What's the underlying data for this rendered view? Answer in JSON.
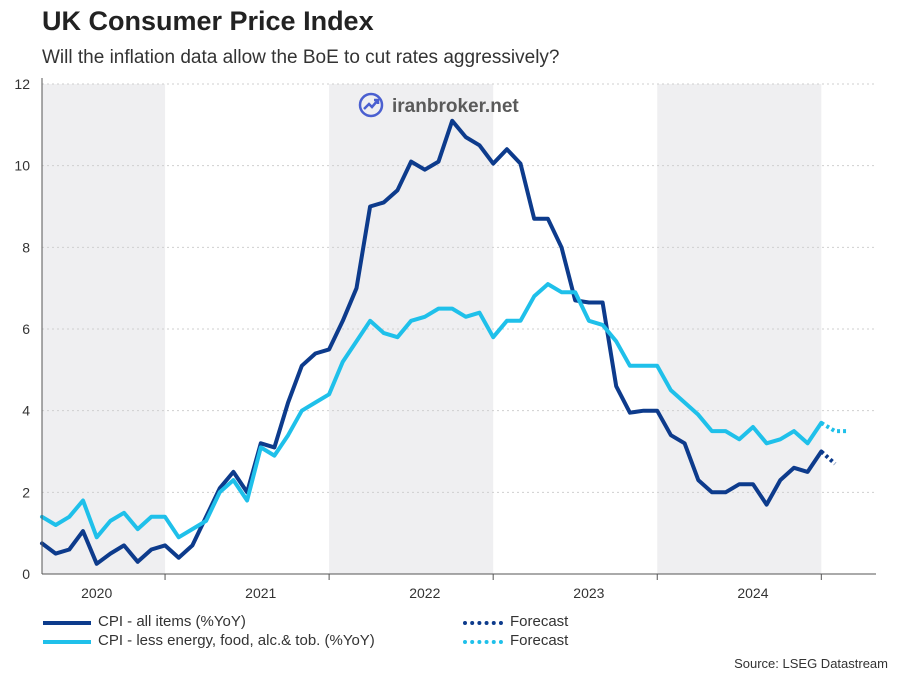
{
  "title": "UK Consumer Price Index",
  "subtitle": "Will the inflation data allow the BoE to cut rates aggressively?",
  "watermark": "iranbroker.net",
  "source": "Source: LSEG Datastream",
  "colors": {
    "cpi_all": "#0d3b8c",
    "cpi_core": "#1fc0ea",
    "shade": "#efeff1",
    "grid": "#cfcfcf"
  },
  "legend": [
    {
      "label": "CPI - all items (%YoY)",
      "style": "solid",
      "color": "#0d3b8c"
    },
    {
      "label": "CPI - less energy, food, alc.& tob. (%YoY)",
      "style": "solid",
      "color": "#1fc0ea"
    },
    {
      "label": "Forecast",
      "style": "dotted",
      "color": "#0d3b8c"
    },
    {
      "label": "Forecast",
      "style": "dotted",
      "color": "#1fc0ea"
    }
  ],
  "chart_data": {
    "type": "line",
    "title": "UK Consumer Price Index",
    "xlabel": "",
    "ylabel": "",
    "ylim": [
      0,
      12
    ],
    "yticks": [
      0,
      2,
      4,
      6,
      8,
      10,
      12
    ],
    "xlim_months": [
      0,
      61
    ],
    "x_tick_labels": [
      {
        "label": "2020",
        "month": 4
      },
      {
        "label": "2021",
        "month": 16
      },
      {
        "label": "2022",
        "month": 28
      },
      {
        "label": "2023",
        "month": 40
      },
      {
        "label": "2024",
        "month": 52
      }
    ],
    "shaded_months": [
      [
        0,
        9
      ],
      [
        21,
        33
      ],
      [
        45,
        57
      ]
    ],
    "series": [
      {
        "name": "CPI - all items (%YoY)",
        "x_start_month": 0,
        "values": [
          0.75,
          0.5,
          0.6,
          1.05,
          0.25,
          0.5,
          0.7,
          0.3,
          0.6,
          0.7,
          0.4,
          0.7,
          1.4,
          2.1,
          2.5,
          2.0,
          3.2,
          3.1,
          4.2,
          5.1,
          5.4,
          5.5,
          6.2,
          7.0,
          9.0,
          9.1,
          9.4,
          10.1,
          9.9,
          10.1,
          11.1,
          10.7,
          10.5,
          10.05,
          10.4,
          10.05,
          8.7,
          8.7,
          8.0,
          6.7,
          6.65,
          6.65,
          4.6,
          3.95,
          4.0,
          4.0,
          3.4,
          3.2,
          2.3,
          2.0,
          2.0,
          2.2,
          2.2,
          1.7,
          2.3,
          2.6,
          2.5,
          3.0
        ],
        "forecast": {
          "x_start_month": 57,
          "values": [
            3.0,
            2.7
          ]
        }
      },
      {
        "name": "CPI - less energy, food, alc.& tob. (%YoY)",
        "x_start_month": 0,
        "values": [
          1.4,
          1.2,
          1.4,
          1.8,
          0.9,
          1.3,
          1.5,
          1.1,
          1.4,
          1.4,
          0.9,
          1.1,
          1.3,
          2.0,
          2.3,
          1.8,
          3.1,
          2.9,
          3.4,
          4.0,
          4.2,
          4.4,
          5.2,
          5.7,
          6.2,
          5.9,
          5.8,
          6.2,
          6.3,
          6.5,
          6.5,
          6.3,
          6.4,
          5.8,
          6.2,
          6.2,
          6.8,
          7.1,
          6.9,
          6.9,
          6.2,
          6.1,
          5.7,
          5.1,
          5.1,
          5.1,
          4.5,
          4.2,
          3.9,
          3.5,
          3.5,
          3.3,
          3.6,
          3.2,
          3.3,
          3.5,
          3.2,
          3.7
        ],
        "forecast": {
          "x_start_month": 57,
          "values": [
            3.7,
            3.5,
            3.5
          ]
        }
      }
    ]
  }
}
